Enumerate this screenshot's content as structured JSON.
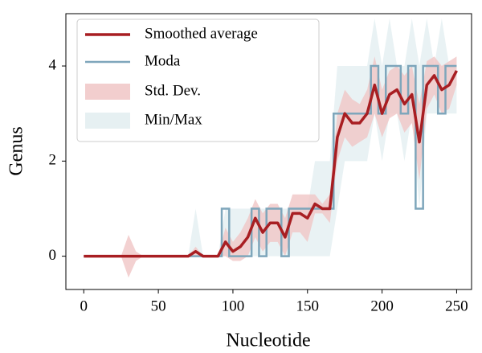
{
  "chart_data": {
    "type": "line",
    "xlabel": "Nucleotide",
    "ylabel": "Genus",
    "xlim": [
      -12,
      260
    ],
    "ylim": [
      -0.7,
      5.1
    ],
    "xticks": [
      0,
      50,
      100,
      150,
      200,
      250
    ],
    "yticks": [
      0,
      2,
      4
    ],
    "legend": "upper left",
    "x": [
      0,
      5,
      10,
      15,
      20,
      25,
      30,
      35,
      40,
      45,
      50,
      55,
      60,
      65,
      70,
      75,
      80,
      85,
      90,
      95,
      100,
      105,
      110,
      115,
      120,
      125,
      130,
      135,
      140,
      145,
      150,
      155,
      160,
      165,
      170,
      175,
      180,
      185,
      190,
      195,
      200,
      205,
      210,
      215,
      220,
      225,
      230,
      235,
      240,
      245,
      250
    ],
    "series": [
      {
        "name": "Smoothed average",
        "color": "#a81e22",
        "values": [
          0,
          0,
          0,
          0,
          0,
          0,
          0,
          0,
          0,
          0,
          0,
          0,
          0,
          0,
          0,
          0.1,
          0,
          0,
          0,
          0.3,
          0.1,
          0.2,
          0.4,
          0.8,
          0.5,
          0.7,
          0.7,
          0.4,
          0.9,
          0.9,
          0.8,
          1.1,
          1.0,
          1.0,
          2.5,
          3.0,
          2.8,
          2.8,
          3.0,
          3.6,
          3.0,
          3.4,
          3.5,
          3.2,
          3.4,
          2.4,
          3.6,
          3.8,
          3.5,
          3.6,
          3.9
        ]
      },
      {
        "name": "Moda",
        "color": "#7ea6bb",
        "step": "mid",
        "values": [
          0,
          0,
          0,
          0,
          0,
          0,
          0,
          0,
          0,
          0,
          0,
          0,
          0,
          0,
          0,
          0,
          0,
          0,
          0,
          1,
          0,
          0,
          0,
          1,
          0,
          1,
          1,
          0,
          1,
          1,
          1,
          1,
          1,
          1,
          3,
          3,
          3,
          3,
          3,
          4,
          3,
          4,
          4,
          3,
          4,
          1,
          4,
          4,
          3,
          4,
          4
        ]
      },
      {
        "name": "Std. Dev.",
        "color": "#f0c6c6",
        "values": [
          0,
          0,
          0,
          0,
          0,
          0,
          0.45,
          0.1,
          0,
          0,
          0,
          0,
          0,
          0,
          0,
          0.1,
          0,
          0,
          0,
          0.3,
          0.2,
          0.3,
          0.4,
          0.4,
          0.4,
          0.4,
          0.4,
          0.4,
          0.4,
          0.4,
          0.5,
          0.2,
          0.1,
          0.3,
          0.5,
          0.5,
          0.5,
          0.4,
          0.5,
          0.6,
          0.5,
          0.5,
          0.5,
          0.6,
          0.6,
          0.8,
          0.5,
          0.4,
          0.5,
          0.5,
          0.3
        ]
      },
      {
        "name": "Min/Max",
        "color": "#e2edf0",
        "lower": [
          0,
          0,
          0,
          0,
          0,
          0,
          0,
          0,
          0,
          0,
          0,
          0,
          0,
          0,
          0,
          0,
          0,
          0,
          0,
          0,
          0,
          0,
          0,
          0,
          0,
          0,
          0,
          0,
          0,
          0,
          0,
          0,
          0,
          0,
          1,
          2,
          2,
          2,
          2,
          3,
          2,
          3,
          3,
          2,
          3,
          1,
          3,
          3,
          3,
          3,
          3
        ],
        "upper": [
          0,
          0,
          0,
          0,
          0,
          0,
          0,
          0,
          0,
          0,
          0,
          0,
          0,
          0,
          0,
          1,
          0,
          0,
          0,
          1,
          1,
          1,
          1,
          1,
          1,
          1,
          1,
          1,
          1,
          1,
          1,
          2,
          2,
          2,
          4,
          4,
          4,
          4,
          4,
          5,
          4,
          5,
          4,
          4,
          5,
          4,
          5,
          4,
          5,
          4,
          4
        ]
      }
    ]
  }
}
